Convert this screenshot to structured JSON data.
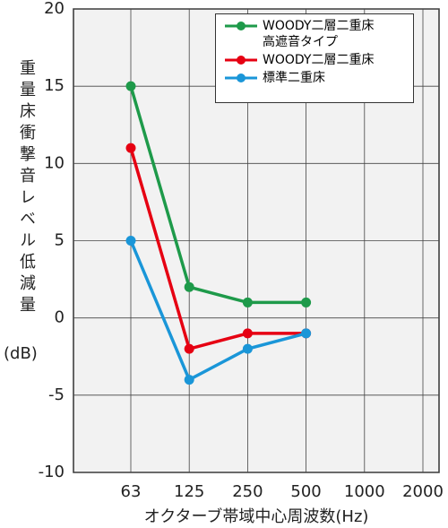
{
  "chart_data": {
    "type": "line",
    "ylabel": "重量床衝撃音レベル低減量",
    "ylabel_unit": "(dB)",
    "xlabel": "オクターブ帯域中心周波数(Hz)",
    "categories": [
      "63",
      "125",
      "250",
      "500",
      "1000",
      "2000"
    ],
    "series": [
      {
        "name": "WOODY二層二重床\n高遮音タイプ",
        "color": "#1e9a4a",
        "values": [
          15,
          2,
          1,
          1,
          null,
          null
        ]
      },
      {
        "name": "WOODY二層二重床",
        "color": "#e60012",
        "values": [
          11,
          -2,
          -1,
          -1,
          null,
          null
        ]
      },
      {
        "name": "標準二重床",
        "color": "#1a96d8",
        "values": [
          5,
          -4,
          -2,
          -1,
          null,
          null
        ]
      }
    ],
    "ylim": [
      -10,
      20
    ],
    "yticks": [
      -10,
      -5,
      0,
      5,
      10,
      15,
      20
    ],
    "grid": true
  }
}
